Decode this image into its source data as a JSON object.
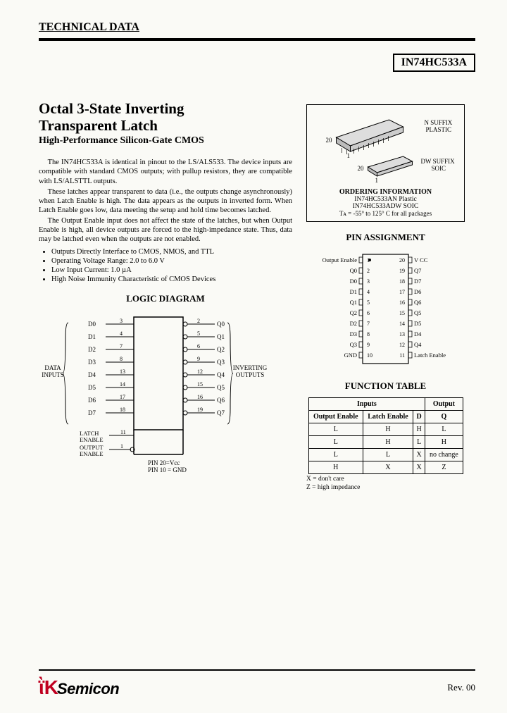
{
  "header": "TECHNICAL DATA",
  "partNumber": "IN74HC533A",
  "title1": "Octal 3-State Inverting",
  "title2": "Transparent Latch",
  "subtitle": "High-Performance Silicon-Gate CMOS",
  "paragraphs": [
    "The IN74HC533A is identical in pinout to the LS/ALS533. The device inputs are compatible with standard CMOS outputs; with pullup resistors, they are compatible with LS/ALSTTL outputs.",
    "These latches appear transparent to data (i.e., the outputs change asynchronously) when Latch Enable is high. The data appears as the outputs in inverted form. When Latch Enable goes low, data meeting the setup and hold time becomes latched.",
    "The Output Enable input does not affect the state of the latches, but when Output Enable is high, all device outputs are forced to the high-impedance state. Thus, data may be latched even when the outputs are not enabled."
  ],
  "features": [
    "Outputs Directly Interface to CMOS, NMOS, and TTL",
    "Operating Voltage Range: 2.0 to 6.0 V",
    "Low Input Current: 1.0 µA",
    "High Noise Immunity Characteristic of CMOS Devices"
  ],
  "packages": {
    "dip": {
      "label1": "N SUFFIX",
      "label2": "PLASTIC",
      "pins": [
        "20",
        "1"
      ]
    },
    "soic": {
      "label1": "DW SUFFIX",
      "label2": "SOIC",
      "pins": [
        "20",
        "1"
      ]
    }
  },
  "ordering": {
    "title": "ORDERING INFORMATION",
    "lines": [
      "IN74HC533AN Plastic",
      "IN74HC533ADW SOIC",
      "Tᴀ = -55° to 125° C for all packages"
    ]
  },
  "pinAssignment": {
    "title": "PIN ASSIGNMENT",
    "left": [
      "Output Enable",
      "Q0",
      "D0",
      "D1",
      "Q1",
      "Q2",
      "D2",
      "D3",
      "Q3",
      "GND"
    ],
    "leftNums": [
      "1",
      "2",
      "3",
      "4",
      "5",
      "6",
      "7",
      "8",
      "9",
      "10"
    ],
    "right": [
      "V CC",
      "Q7",
      "D7",
      "D6",
      "Q6",
      "Q5",
      "D5",
      "D4",
      "Q4",
      "Latch Enable"
    ],
    "rightNums": [
      "20",
      "19",
      "18",
      "17",
      "16",
      "15",
      "14",
      "13",
      "12",
      "11"
    ]
  },
  "logicDiagram": {
    "title": "LOGIC DIAGRAM",
    "dataLabel": "DATA\nINPUTS",
    "outLabel": "INVERTING\nOUTPUTS",
    "inputs": [
      {
        "name": "D0",
        "pin": "3"
      },
      {
        "name": "D1",
        "pin": "4"
      },
      {
        "name": "D2",
        "pin": "7"
      },
      {
        "name": "D3",
        "pin": "8"
      },
      {
        "name": "D4",
        "pin": "13"
      },
      {
        "name": "D5",
        "pin": "14"
      },
      {
        "name": "D6",
        "pin": "17"
      },
      {
        "name": "D7",
        "pin": "18"
      }
    ],
    "outputs": [
      {
        "name": "Q0",
        "pin": "2"
      },
      {
        "name": "Q1",
        "pin": "5"
      },
      {
        "name": "Q2",
        "pin": "6"
      },
      {
        "name": "Q3",
        "pin": "9"
      },
      {
        "name": "Q4",
        "pin": "12"
      },
      {
        "name": "Q5",
        "pin": "15"
      },
      {
        "name": "Q6",
        "pin": "16"
      },
      {
        "name": "Q7",
        "pin": "19"
      }
    ],
    "latch": {
      "name": "LATCH\nENABLE",
      "pin": "11"
    },
    "oe": {
      "name": "OUTPUT\nENABLE",
      "pin": "1"
    },
    "footer": [
      "PIN 20=Vcc",
      "PIN 10 = GND"
    ]
  },
  "functionTable": {
    "title": "FUNCTION TABLE",
    "headers": {
      "inputs": "Inputs",
      "output": "Output",
      "oe": "Output Enable",
      "le": "Latch Enable",
      "d": "D",
      "q": "Q"
    },
    "rows": [
      [
        "L",
        "H",
        "H",
        "L"
      ],
      [
        "L",
        "H",
        "L",
        "H"
      ],
      [
        "L",
        "L",
        "X",
        "no change"
      ],
      [
        "H",
        "X",
        "X",
        "Z"
      ]
    ],
    "notes": [
      "X = don't care",
      "Z = high impedance"
    ]
  },
  "footer": {
    "logoK": "ῒK",
    "logoText": "Semicon",
    "rev": "Rev. 00"
  },
  "colors": {
    "logoRed": "#c00020",
    "text": "#000000",
    "bg": "#fafaf6"
  }
}
